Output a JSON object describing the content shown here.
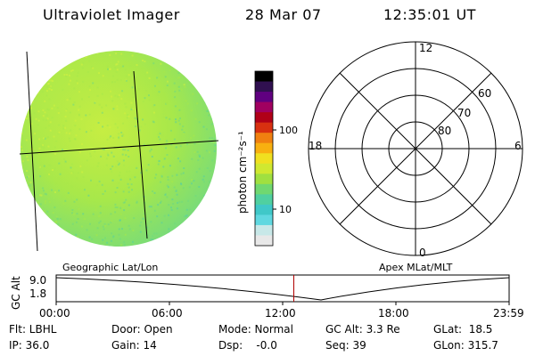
{
  "header": {
    "title": "Ultraviolet Imager",
    "date": "28 Mar 07",
    "time": "12:35:01 UT"
  },
  "colorbar": {
    "unit_label": "photon cm⁻²s⁻¹",
    "tick_labels": [
      "100",
      "10"
    ],
    "colors": [
      "#e8e8e8",
      "#c8e8e8",
      "#60d8e0",
      "#40c8c8",
      "#50d0a0",
      "#70d870",
      "#a0e040",
      "#d0e830",
      "#f0e020",
      "#f8b010",
      "#f08010",
      "#d83010",
      "#b00018",
      "#a00060",
      "#600080",
      "#301050",
      "#000000"
    ]
  },
  "polar_plot": {
    "mlt_labels": {
      "top": "12",
      "left": "18",
      "right": "6",
      "bottom": "0"
    },
    "lat_labels": [
      "60",
      "70",
      "80"
    ]
  },
  "map_labels": {
    "left": "Geographic Lat/Lon",
    "right": "Apex MLat/MLT"
  },
  "altitude_panel": {
    "axis_label": "GC Alt",
    "y_ticks": [
      "9.0",
      "1.8"
    ],
    "x_ticks": [
      "00:00",
      "06:00",
      "12:00",
      "18:00",
      "23:59"
    ],
    "marker_time": "12:35",
    "marker_color": "#b00000"
  },
  "status": {
    "flt": "Flt: LBHL",
    "ip": "IP: 36.0",
    "door": "Door: Open",
    "gain": "Gain: 14",
    "mode": "Mode: Normal",
    "dsp": "Dsp:    -0.0",
    "gc_alt": "GC Alt: 3.3 Re",
    "seq": "Seq: 39",
    "glat": "GLat:  18.5",
    "glon": "GLon: 315.7"
  },
  "earth_image": {
    "colors": {
      "base": "#a8e84a",
      "light": "#d4f040",
      "dark": "#70d880",
      "deep": "#58d0a0"
    }
  }
}
